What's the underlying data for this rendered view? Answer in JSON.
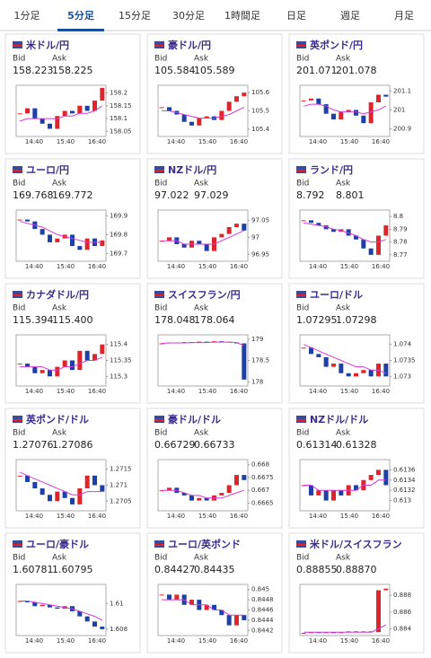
{
  "tabs": [
    "1分足",
    "5分足",
    "15分足",
    "30分足",
    "1時間足",
    "日足",
    "週足",
    "月足"
  ],
  "active_tab": 1,
  "labels": {
    "bid": "Bid",
    "ask": "Ask"
  },
  "xticks": [
    "14:40",
    "15:40",
    "16:40"
  ],
  "cards": [
    {
      "pair": "米ドル/円",
      "bid": "158.223",
      "ask": "158.225",
      "chart": {
        "ylim": [
          158.03,
          158.23
        ],
        "yticks": [
          158.2,
          158.15,
          158.1,
          158.05
        ],
        "close": [
          158.12,
          158.14,
          158.1,
          158.08,
          158.06,
          158.11,
          158.13,
          158.12,
          158.15,
          158.13,
          158.17,
          158.22
        ],
        "ma": [
          158.09,
          158.1,
          158.1,
          158.1,
          158.1,
          158.1,
          158.11,
          158.11,
          158.12,
          158.12,
          158.13,
          158.15
        ]
      }
    },
    {
      "pair": "豪ドル/円",
      "bid": "105.584",
      "ask": "105.589",
      "chart": {
        "ylim": [
          105.36,
          105.64
        ],
        "yticks": [
          105.6,
          105.5,
          105.4
        ],
        "close": [
          105.52,
          105.5,
          105.48,
          105.44,
          105.42,
          105.46,
          105.47,
          105.45,
          105.5,
          105.55,
          105.58,
          105.6
        ],
        "ma": [
          105.5,
          105.5,
          105.49,
          105.48,
          105.47,
          105.46,
          105.46,
          105.46,
          105.47,
          105.48,
          105.5,
          105.52
        ]
      }
    },
    {
      "pair": "英ポンド/円",
      "bid": "201.071",
      "ask": "201.078",
      "chart": {
        "ylim": [
          200.86,
          201.13
        ],
        "yticks": [
          201.1,
          201,
          200.9
        ],
        "close": [
          201.05,
          201.06,
          201.03,
          200.98,
          200.95,
          200.99,
          201.0,
          200.97,
          200.93,
          201.04,
          201.08,
          201.07
        ],
        "ma": [
          201.02,
          201.03,
          201.03,
          201.02,
          201.0,
          200.99,
          200.99,
          200.99,
          200.98,
          200.99,
          201.0,
          201.02
        ]
      }
    },
    {
      "pair": "ユーロ/円",
      "bid": "169.768",
      "ask": "169.772",
      "chart": {
        "ylim": [
          169.66,
          169.93
        ],
        "yticks": [
          169.9,
          169.8,
          169.7
        ],
        "close": [
          169.88,
          169.87,
          169.83,
          169.8,
          169.76,
          169.78,
          169.8,
          169.74,
          169.72,
          169.78,
          169.74,
          169.77
        ],
        "ma": [
          169.87,
          169.86,
          169.85,
          169.84,
          169.82,
          169.8,
          169.79,
          169.78,
          169.77,
          169.76,
          169.76,
          169.76
        ]
      }
    },
    {
      "pair": "NZドル/円",
      "bid": "97.022",
      "ask": "97.029",
      "chart": {
        "ylim": [
          96.93,
          97.08
        ],
        "yticks": [
          97.05,
          97,
          96.95
        ],
        "close": [
          96.99,
          97.0,
          96.98,
          96.97,
          96.99,
          96.98,
          96.96,
          97.0,
          97.01,
          97.03,
          97.04,
          97.02
        ],
        "ma": [
          96.99,
          96.99,
          96.99,
          96.98,
          96.98,
          96.98,
          96.98,
          96.98,
          96.99,
          97.0,
          97.01,
          97.02
        ]
      }
    },
    {
      "pair": "ランド/円",
      "bid": "8.792",
      "ask": "8.801",
      "chart": {
        "ylim": [
          8.765,
          8.805
        ],
        "yticks": [
          8.8,
          8.79,
          8.78,
          8.77
        ],
        "close": [
          8.797,
          8.795,
          8.793,
          8.79,
          8.788,
          8.79,
          8.785,
          8.782,
          8.775,
          8.77,
          8.785,
          8.793
        ],
        "ma": [
          8.795,
          8.794,
          8.793,
          8.792,
          8.79,
          8.789,
          8.787,
          8.785,
          8.782,
          8.78,
          8.78,
          8.782
        ]
      }
    },
    {
      "pair": "カナダドル/円",
      "bid": "115.394",
      "ask": "115.400",
      "chart": {
        "ylim": [
          115.27,
          115.43
        ],
        "yticks": [
          115.4,
          115.35,
          115.3
        ],
        "close": [
          115.34,
          115.33,
          115.31,
          115.32,
          115.3,
          115.33,
          115.35,
          115.32,
          115.38,
          115.35,
          115.37,
          115.4
        ],
        "ma": [
          115.33,
          115.33,
          115.33,
          115.33,
          115.32,
          115.32,
          115.33,
          115.33,
          115.34,
          115.35,
          115.35,
          115.36
        ]
      }
    },
    {
      "pair": "スイスフラン/円",
      "bid": "178.048",
      "ask": "178.064",
      "chart": {
        "ylim": [
          177.9,
          179.1
        ],
        "yticks": [
          179,
          178.5,
          178
        ],
        "close": [
          178.9,
          178.92,
          178.91,
          178.93,
          178.92,
          178.94,
          178.93,
          178.95,
          178.94,
          178.92,
          178.9,
          178.05
        ],
        "ma": [
          178.9,
          178.91,
          178.91,
          178.91,
          178.92,
          178.92,
          178.92,
          178.93,
          178.93,
          178.93,
          178.92,
          178.85
        ]
      }
    },
    {
      "pair": "ユーロ/ドル",
      "bid": "1.07295",
      "ask": "1.07298",
      "chart": {
        "ylim": [
          1.0727,
          1.0743
        ],
        "yticks": [
          1.074,
          1.0735,
          1.073
        ],
        "close": [
          1.0739,
          1.0737,
          1.0736,
          1.0733,
          1.0734,
          1.0731,
          1.073,
          1.0731,
          1.0732,
          1.073,
          1.0734,
          1.073
        ],
        "ma": [
          1.074,
          1.0739,
          1.0738,
          1.0737,
          1.0736,
          1.0735,
          1.0734,
          1.0733,
          1.0733,
          1.0732,
          1.0732,
          1.0731
        ]
      }
    },
    {
      "pair": "英ポンド/ドル",
      "bid": "1.27076",
      "ask": "1.27086",
      "chart": {
        "ylim": [
          1.2702,
          1.2718
        ],
        "yticks": [
          1.2715,
          1.271,
          1.2705
        ],
        "close": [
          1.2713,
          1.2711,
          1.2709,
          1.2707,
          1.2705,
          1.2708,
          1.2706,
          1.2704,
          1.2709,
          1.2713,
          1.271,
          1.2708
        ],
        "ma": [
          1.2714,
          1.2713,
          1.2712,
          1.2711,
          1.271,
          1.2709,
          1.2708,
          1.2707,
          1.2707,
          1.2708,
          1.2708,
          1.2708
        ]
      }
    },
    {
      "pair": "豪ドル/ドル",
      "bid": "0.66729",
      "ask": "0.66733",
      "chart": {
        "ylim": [
          0.6662,
          0.6682
        ],
        "yticks": [
          0.668,
          0.6675,
          0.667,
          0.6665
        ],
        "close": [
          0.667,
          0.6671,
          0.6669,
          0.6668,
          0.6666,
          0.6667,
          0.6666,
          0.6668,
          0.6669,
          0.6672,
          0.6676,
          0.6674
        ],
        "ma": [
          0.667,
          0.667,
          0.667,
          0.6669,
          0.6668,
          0.6668,
          0.6667,
          0.6667,
          0.6667,
          0.6668,
          0.6669,
          0.667
        ]
      }
    },
    {
      "pair": "NZドル/ドル",
      "bid": "0.61314",
      "ask": "0.61328",
      "chart": {
        "ylim": [
          0.6128,
          0.6138
        ],
        "yticks": [
          0.6136,
          0.6134,
          0.6132,
          0.613
        ],
        "close": [
          0.6133,
          0.6131,
          0.6132,
          0.613,
          0.6132,
          0.6131,
          0.6133,
          0.6132,
          0.6134,
          0.6135,
          0.6136,
          0.6133
        ],
        "ma": [
          0.6133,
          0.6133,
          0.6132,
          0.6132,
          0.6132,
          0.6132,
          0.6132,
          0.6132,
          0.6133,
          0.6133,
          0.6134,
          0.6134
        ]
      }
    },
    {
      "pair": "ユーロ/豪ドル",
      "bid": "1.60781",
      "ask": "1.60795",
      "chart": {
        "ylim": [
          1.6075,
          1.6115
        ],
        "yticks": [
          1.61,
          1.608
        ],
        "close": [
          1.6102,
          1.6101,
          1.6098,
          1.6099,
          1.6097,
          1.6096,
          1.6098,
          1.6094,
          1.609,
          1.6086,
          1.6082,
          1.608
        ],
        "ma": [
          1.6102,
          1.6102,
          1.6101,
          1.61,
          1.6099,
          1.6098,
          1.6097,
          1.6096,
          1.6094,
          1.6092,
          1.609,
          1.6087
        ]
      }
    },
    {
      "pair": "ユーロ/英ポンド",
      "bid": "0.84427",
      "ask": "0.84435",
      "chart": {
        "ylim": [
          0.8441,
          0.8451
        ],
        "yticks": [
          0.845,
          0.8448,
          0.8446,
          0.8444,
          0.8442
        ],
        "close": [
          0.8449,
          0.8448,
          0.8449,
          0.8447,
          0.8448,
          0.8446,
          0.8447,
          0.8446,
          0.8445,
          0.8443,
          0.8445,
          0.8444
        ],
        "ma": [
          0.8448,
          0.8448,
          0.8448,
          0.8448,
          0.8447,
          0.8447,
          0.8447,
          0.8446,
          0.8446,
          0.8445,
          0.8445,
          0.8445
        ]
      }
    },
    {
      "pair": "米ドル/スイスフラン",
      "bid": "0.88855",
      "ask": "0.88870",
      "chart": {
        "ylim": [
          0.8832,
          0.8893
        ],
        "yticks": [
          0.888,
          0.886,
          0.884
        ],
        "close": [
          0.8835,
          0.8836,
          0.8835,
          0.8836,
          0.8835,
          0.8836,
          0.8837,
          0.8836,
          0.8837,
          0.8836,
          0.8886,
          0.8888
        ],
        "ma": [
          0.8836,
          0.8836,
          0.8836,
          0.8836,
          0.8836,
          0.8836,
          0.8836,
          0.8836,
          0.8836,
          0.8836,
          0.884,
          0.8845
        ]
      }
    }
  ]
}
